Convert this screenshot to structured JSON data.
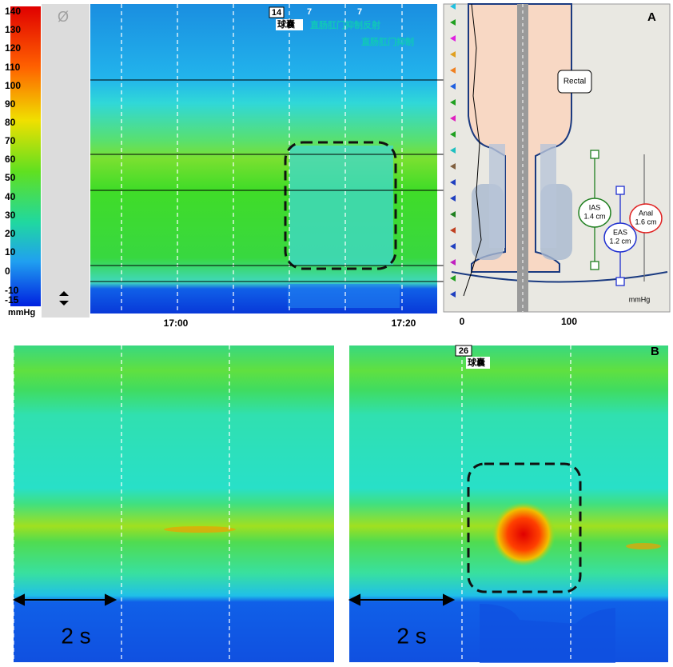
{
  "panel_a": {
    "label": "A",
    "scale": {
      "ticks": [
        140,
        130,
        120,
        110,
        100,
        90,
        80,
        70,
        60,
        50,
        40,
        30,
        20,
        10,
        0,
        -10,
        -15
      ],
      "unit": "mmHg",
      "symbol": "Ø"
    },
    "times": [
      "17:00",
      "17:20"
    ],
    "events": [
      {
        "number": "14",
        "label": "球囊"
      },
      {
        "number": "7",
        "label": "直肠肛门抑制反射"
      },
      {
        "number": "7",
        "label": "直肠肛门抑制"
      }
    ],
    "diagram": {
      "rectal": "Rectal",
      "ias": {
        "name": "IAS",
        "length": "1.4 cm"
      },
      "eas": {
        "name": "EAS",
        "length": "1.2 cm"
      },
      "anal": {
        "name": "Anal",
        "length": "1.6 cm"
      },
      "unit": "mmHg",
      "axis": [
        "0",
        "100"
      ]
    }
  },
  "panel_b": {
    "label": "B",
    "event": {
      "number": "26",
      "label": "球囊"
    },
    "scale_bars": [
      "2 s",
      "2 s"
    ]
  }
}
